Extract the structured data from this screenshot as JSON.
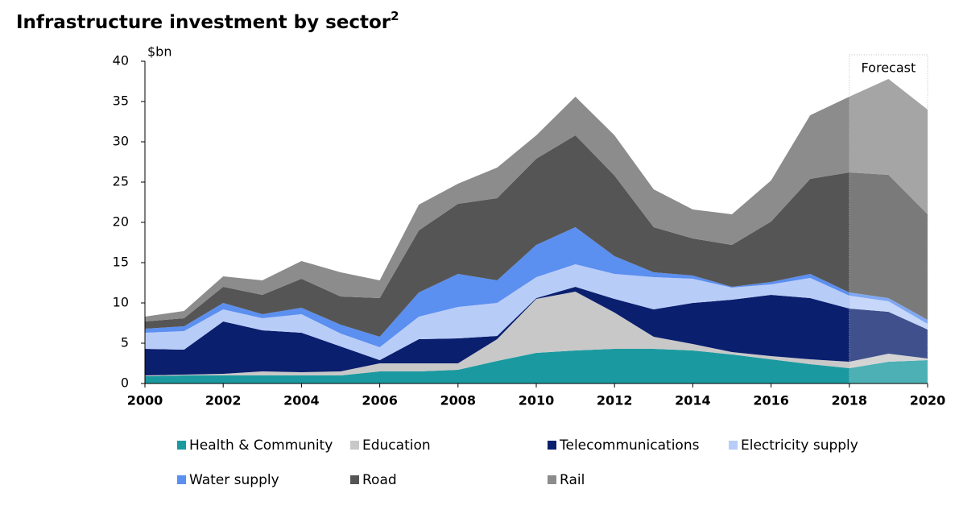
{
  "chart_data": {
    "type": "stacked-area",
    "title": "Infrastructure investment by sector",
    "title_note": "2",
    "y_unit": "$bn",
    "x": [
      2000,
      2001,
      2002,
      2003,
      2004,
      2005,
      2006,
      2007,
      2008,
      2009,
      2010,
      2011,
      2012,
      2013,
      2014,
      2015,
      2016,
      2017,
      2018,
      2019,
      2020
    ],
    "xlim": [
      2000,
      2020
    ],
    "xticks": [
      2000,
      2002,
      2004,
      2006,
      2008,
      2010,
      2012,
      2014,
      2016,
      2018,
      2020
    ],
    "ylim": [
      0,
      40
    ],
    "yticks": [
      0,
      5,
      10,
      15,
      20,
      25,
      30,
      35,
      40
    ],
    "forecast": {
      "label": "Forecast",
      "from": 2018,
      "to": 2020
    },
    "series": [
      {
        "name": "Health & Community",
        "color": "#1a9aa0",
        "values": [
          0.9,
          1.0,
          1.0,
          1.0,
          1.0,
          1.0,
          1.5,
          1.5,
          1.7,
          2.8,
          3.8,
          4.1,
          4.3,
          4.3,
          4.1,
          3.6,
          3.0,
          2.4,
          1.9,
          2.7,
          2.9
        ]
      },
      {
        "name": "Education",
        "color": "#c8c8c8",
        "values": [
          0.1,
          0.1,
          0.2,
          0.5,
          0.4,
          0.5,
          1.0,
          1.0,
          0.8,
          2.7,
          6.7,
          7.3,
          4.5,
          1.5,
          0.8,
          0.3,
          0.4,
          0.6,
          0.8,
          1.0,
          0.2
        ]
      },
      {
        "name": "Telecommunications",
        "color": "#0a1f6e",
        "values": [
          3.3,
          3.1,
          6.5,
          5.1,
          4.9,
          3.1,
          0.4,
          3.0,
          3.1,
          0.4,
          0.1,
          0.6,
          1.7,
          3.4,
          5.1,
          6.5,
          7.6,
          7.6,
          6.6,
          5.2,
          3.6
        ]
      },
      {
        "name": "Electricity supply",
        "color": "#b8ccf8",
        "values": [
          2.0,
          2.3,
          1.5,
          1.5,
          2.3,
          1.6,
          1.6,
          2.8,
          3.9,
          4.1,
          2.6,
          2.8,
          3.1,
          4.0,
          3.0,
          1.5,
          1.3,
          2.5,
          1.6,
          1.3,
          0.7
        ]
      },
      {
        "name": "Water supply",
        "color": "#5b8ff0",
        "values": [
          0.5,
          0.6,
          0.8,
          0.5,
          0.8,
          1.1,
          1.3,
          3.0,
          4.1,
          2.8,
          4.0,
          4.6,
          2.2,
          0.6,
          0.4,
          0.1,
          0.3,
          0.5,
          0.4,
          0.4,
          0.5
        ]
      },
      {
        "name": "Road",
        "color": "#555555",
        "values": [
          0.9,
          1.0,
          2.0,
          2.4,
          3.6,
          3.5,
          4.8,
          7.7,
          8.7,
          10.2,
          10.7,
          11.4,
          10.0,
          5.6,
          4.6,
          5.2,
          7.5,
          11.8,
          14.9,
          15.3,
          13.1
        ]
      },
      {
        "name": "Rail",
        "color": "#8c8c8c",
        "values": [
          0.6,
          0.9,
          1.3,
          1.8,
          2.2,
          3.0,
          2.2,
          3.2,
          2.5,
          3.8,
          2.9,
          4.8,
          5.0,
          4.7,
          3.6,
          3.8,
          5.1,
          7.9,
          9.4,
          11.9,
          13.0
        ]
      }
    ]
  }
}
